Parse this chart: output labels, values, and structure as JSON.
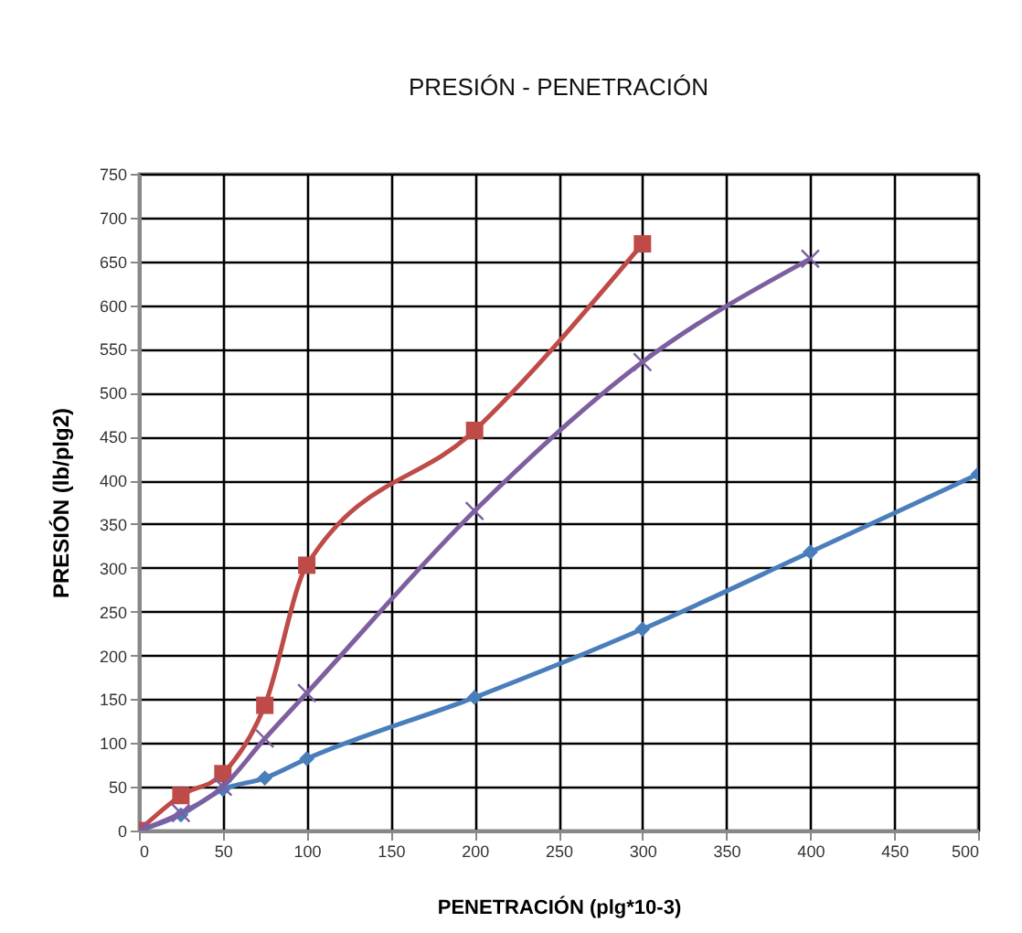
{
  "chart_data": {
    "type": "line",
    "title": "PRESIÓN  - PENETRACIÓN",
    "xlabel": "PENETRACIÓN (plg*10-3)",
    "ylabel": "PRESIÓN (lb/plg2)",
    "xlim": [
      0,
      500
    ],
    "xticks": [
      0,
      50,
      100,
      150,
      200,
      250,
      300,
      350,
      400,
      450,
      500
    ],
    "ylim": [
      0,
      750
    ],
    "yticks": [
      0,
      50,
      100,
      150,
      200,
      250,
      300,
      350,
      400,
      450,
      500,
      550,
      600,
      650,
      700,
      750
    ],
    "grid": true,
    "legend": false,
    "series": [
      {
        "color": "#4a7ebb",
        "marker": "diamond",
        "x": [
          0,
          25,
          50,
          75,
          100,
          200,
          300,
          400,
          500
        ],
        "values": [
          0,
          18,
          47,
          60,
          82,
          152,
          230,
          318,
          407
        ]
      },
      {
        "color": "#be4b48",
        "marker": "square",
        "x": [
          0,
          25,
          50,
          75,
          100,
          200,
          300
        ],
        "values": [
          0,
          40,
          65,
          143,
          303,
          457,
          670
        ]
      },
      {
        "color": "#7d5fa0",
        "marker": "cross",
        "x": [
          0,
          25,
          50,
          75,
          100,
          200,
          300,
          400
        ],
        "values": [
          0,
          20,
          50,
          105,
          157,
          365,
          535,
          653
        ]
      }
    ]
  }
}
